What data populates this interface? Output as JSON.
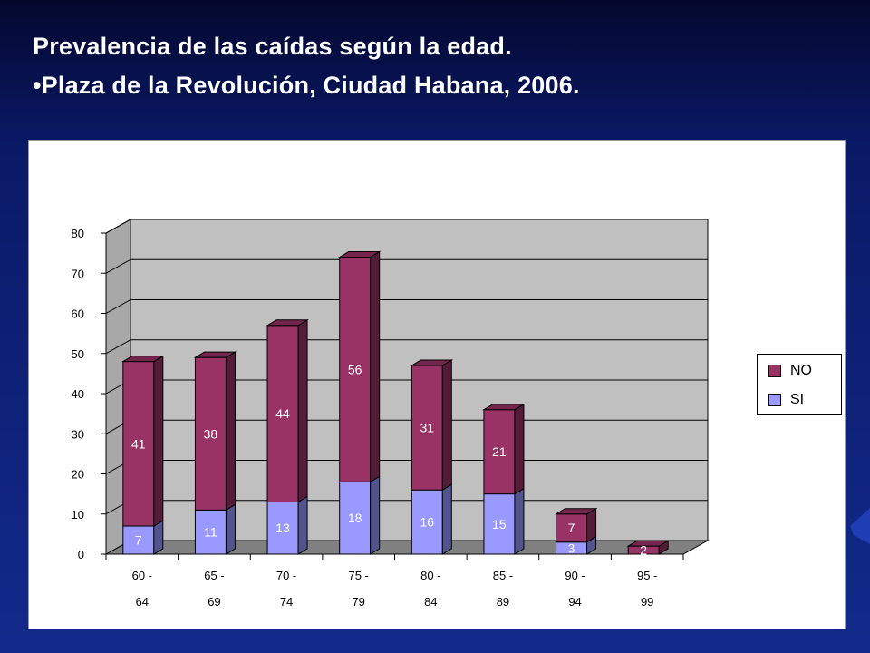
{
  "slide": {
    "title_line1": "Prevalencia de las caídas según la edad.",
    "title_line2": "•Plaza de la Revolución, Ciudad Habana, 2006."
  },
  "colors": {
    "series_no": "#993366",
    "series_si": "#9999ff",
    "wall": "#c0c0c0",
    "floor": "#808080"
  },
  "chart_data": {
    "type": "bar",
    "stacked": true,
    "three_d": true,
    "title": "",
    "xlabel": "",
    "ylabel": "",
    "ylim": [
      0,
      80
    ],
    "yticks": [
      0,
      10,
      20,
      30,
      40,
      50,
      60,
      70,
      80
    ],
    "grid": true,
    "legend_position": "right",
    "categories": [
      [
        "60 -",
        "64"
      ],
      [
        "65 -",
        "69"
      ],
      [
        "70 -",
        "74"
      ],
      [
        "75 -",
        "79"
      ],
      [
        "80 -",
        "84"
      ],
      [
        "85 -",
        "89"
      ],
      [
        "90 -",
        "94"
      ],
      [
        "95 -",
        "99"
      ]
    ],
    "series": [
      {
        "name": "SI",
        "color": "#9999ff",
        "values": [
          7,
          11,
          13,
          18,
          16,
          15,
          3,
          0
        ]
      },
      {
        "name": "NO",
        "color": "#993366",
        "values": [
          41,
          38,
          44,
          56,
          31,
          21,
          7,
          2
        ]
      }
    ],
    "legend": [
      {
        "name": "NO",
        "color": "#993366"
      },
      {
        "name": "SI",
        "color": "#9999ff"
      }
    ]
  }
}
